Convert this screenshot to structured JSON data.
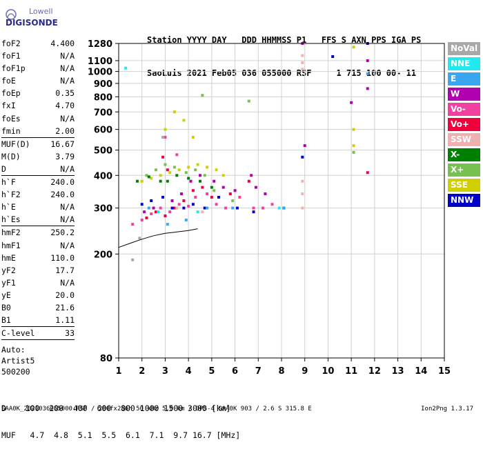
{
  "logo": {
    "line1": "Lowell",
    "line2": "DIGISONDE"
  },
  "header": {
    "line1": "Station YYYY DAY   DDD HHMMSS P1   FFS S AXN PPS IGA PS",
    "line2": "SaoLuis 2021 Feb05 036 055000 RSF     1 715 100 00- 11"
  },
  "params": [
    {
      "group": [
        {
          "name": "foF2",
          "value": "4.400"
        },
        {
          "name": "foF1",
          "value": "N/A"
        },
        {
          "name": "foF1p",
          "value": "N/A"
        },
        {
          "name": "foE",
          "value": "N/A"
        },
        {
          "name": "foEp",
          "value": "0.35"
        },
        {
          "name": "fxI",
          "value": "4.70"
        },
        {
          "name": "foEs",
          "value": "N/A"
        },
        {
          "name": "fmin",
          "value": "2.00"
        }
      ]
    },
    {
      "group": [
        {
          "name": "MUF(D)",
          "value": "16.67"
        },
        {
          "name": "M(D)",
          "value": "3.79"
        },
        {
          "name": "D",
          "value": "N/A"
        }
      ]
    },
    {
      "group": [
        {
          "name": "h`F",
          "value": "240.0"
        },
        {
          "name": "h`F2",
          "value": "240.0"
        },
        {
          "name": "h`E",
          "value": "N/A"
        },
        {
          "name": "h`Es",
          "value": "N/A"
        }
      ]
    },
    {
      "group": [
        {
          "name": "hmF2",
          "value": "250.2"
        },
        {
          "name": "hmF1",
          "value": "N/A"
        },
        {
          "name": "hmE",
          "value": "110.0"
        },
        {
          "name": "yF2",
          "value": "17.7"
        },
        {
          "name": "yF1",
          "value": "N/A"
        },
        {
          "name": "yE",
          "value": "20.0"
        },
        {
          "name": "B0",
          "value": "21.6"
        },
        {
          "name": "B1",
          "value": "1.11"
        }
      ]
    },
    {
      "group": [
        {
          "name": "C-level",
          "value": "33"
        }
      ]
    }
  ],
  "info": [
    "Auto:",
    "Artist5",
    "500200"
  ],
  "legend": [
    {
      "label": "NoVal",
      "color": "#a8a8a8"
    },
    {
      "label": "NNE",
      "color": "#22e8f0"
    },
    {
      "label": "E",
      "color": "#3aa6f0"
    },
    {
      "label": "W",
      "color": "#b000b0"
    },
    {
      "label": "Vo-",
      "color": "#f040a0"
    },
    {
      "label": "Vo+",
      "color": "#f0003c"
    },
    {
      "label": "SSW",
      "color": "#f0b0b0"
    },
    {
      "label": "X-",
      "color": "#008000"
    },
    {
      "label": "X+",
      "color": "#78c050"
    },
    {
      "label": "SSE",
      "color": "#d0d000"
    },
    {
      "label": "NNW",
      "color": "#0000c8"
    }
  ],
  "muf_table": {
    "line1": "D    100  200  400  600  800 1000 1500 3000 [km]",
    "line2": "MUF   4.7  4.8  5.1  5.5  6.1  7.1  9.7 16.7 [MHz]"
  },
  "footer": "SAA0K_2021036055000.RSF / 280fx256h 50 kHz 5.0 km / DPS-4 SAA0K 903 / 2.6 S 315.8 E",
  "version": "Ion2Png 1.3.17",
  "chart_data": {
    "type": "scatter",
    "xlabel": "",
    "ylabel": "",
    "xlim": [
      1,
      15
    ],
    "ylim": [
      80,
      1280
    ],
    "xticks": [
      1,
      2,
      3,
      4,
      5,
      6,
      7,
      8,
      9,
      10,
      11,
      12,
      13,
      14,
      15
    ],
    "yticks": [
      80,
      200,
      300,
      400,
      500,
      600,
      700,
      800,
      900,
      1000,
      1100,
      1280
    ],
    "grid": true,
    "trace_curve": {
      "x": [
        1.0,
        1.5,
        2.0,
        2.5,
        3.0,
        3.5,
        4.0,
        4.4
      ],
      "y": [
        212,
        220,
        228,
        235,
        240,
        243,
        246,
        250
      ]
    },
    "series": [
      {
        "name": "Vo-",
        "points": [
          [
            2.0,
            270
          ],
          [
            2.4,
            285
          ],
          [
            2.8,
            300
          ],
          [
            3.2,
            290
          ],
          [
            3.6,
            310
          ],
          [
            4.0,
            305
          ],
          [
            4.3,
            330
          ],
          [
            4.8,
            340
          ],
          [
            5.2,
            310
          ],
          [
            5.6,
            300
          ],
          [
            6.2,
            330
          ],
          [
            6.8,
            300
          ],
          [
            7.2,
            300
          ],
          [
            7.6,
            310
          ],
          [
            1.6,
            260
          ],
          [
            3.5,
            480
          ],
          [
            3.0,
            560
          ]
        ]
      },
      {
        "name": "Vo+",
        "points": [
          [
            2.2,
            275
          ],
          [
            2.6,
            290
          ],
          [
            3.0,
            280
          ],
          [
            3.4,
            300
          ],
          [
            3.8,
            320
          ],
          [
            4.2,
            350
          ],
          [
            4.6,
            360
          ],
          [
            5.0,
            330
          ],
          [
            5.8,
            340
          ],
          [
            6.6,
            380
          ],
          [
            3.1,
            420
          ],
          [
            2.9,
            470
          ],
          [
            11.7,
            410
          ]
        ]
      },
      {
        "name": "W",
        "points": [
          [
            2.1,
            290
          ],
          [
            2.5,
            300
          ],
          [
            3.3,
            320
          ],
          [
            3.7,
            340
          ],
          [
            4.1,
            380
          ],
          [
            4.5,
            400
          ],
          [
            5.1,
            380
          ],
          [
            5.5,
            360
          ],
          [
            6.0,
            350
          ],
          [
            6.7,
            400
          ],
          [
            6.9,
            360
          ],
          [
            7.3,
            340
          ],
          [
            9.0,
            520
          ],
          [
            11.0,
            760
          ],
          [
            11.7,
            1100
          ],
          [
            11.7,
            860
          ],
          [
            8.9,
            1280
          ]
        ]
      },
      {
        "name": "NNW",
        "points": [
          [
            2.0,
            310
          ],
          [
            2.4,
            320
          ],
          [
            2.9,
            330
          ],
          [
            3.3,
            300
          ],
          [
            3.8,
            300
          ],
          [
            4.2,
            310
          ],
          [
            4.7,
            300
          ],
          [
            5.3,
            330
          ],
          [
            6.1,
            300
          ],
          [
            6.8,
            290
          ],
          [
            8.1,
            300
          ],
          [
            8.9,
            470
          ],
          [
            10.2,
            1140
          ],
          [
            11.7,
            1280
          ]
        ]
      },
      {
        "name": "SSE",
        "points": [
          [
            2.0,
            380
          ],
          [
            2.4,
            390
          ],
          [
            2.8,
            400
          ],
          [
            3.2,
            410
          ],
          [
            3.6,
            420
          ],
          [
            4.0,
            430
          ],
          [
            4.4,
            440
          ],
          [
            4.8,
            430
          ],
          [
            5.2,
            420
          ],
          [
            5.5,
            400
          ],
          [
            3.0,
            600
          ],
          [
            3.4,
            700
          ],
          [
            3.8,
            650
          ],
          [
            4.2,
            560
          ],
          [
            11.1,
            1240
          ],
          [
            11.1,
            600
          ],
          [
            11.1,
            520
          ]
        ]
      },
      {
        "name": "X+",
        "points": [
          [
            2.2,
            400
          ],
          [
            2.6,
            420
          ],
          [
            3.0,
            440
          ],
          [
            3.4,
            430
          ],
          [
            3.9,
            410
          ],
          [
            4.3,
            420
          ],
          [
            4.7,
            400
          ],
          [
            5.1,
            350
          ],
          [
            5.9,
            320
          ],
          [
            6.6,
            770
          ],
          [
            4.6,
            810
          ],
          [
            11.1,
            490
          ]
        ]
      },
      {
        "name": "X-",
        "points": [
          [
            1.8,
            380
          ],
          [
            2.3,
            395
          ],
          [
            3.1,
            380
          ],
          [
            3.5,
            400
          ],
          [
            4.0,
            390
          ],
          [
            4.5,
            380
          ],
          [
            5.0,
            360
          ],
          [
            2.8,
            380
          ]
        ]
      },
      {
        "name": "E",
        "points": [
          [
            2.3,
            300
          ],
          [
            3.1,
            260
          ],
          [
            3.9,
            270
          ],
          [
            4.8,
            300
          ],
          [
            5.9,
            300
          ],
          [
            8.1,
            300
          ],
          [
            11.7,
            980
          ]
        ]
      },
      {
        "name": "NNE",
        "points": [
          [
            1.3,
            1030
          ],
          [
            2.7,
            290
          ],
          [
            4.4,
            290
          ],
          [
            7.9,
            300
          ]
        ]
      },
      {
        "name": "SSW",
        "points": [
          [
            8.9,
            300
          ],
          [
            8.9,
            340
          ],
          [
            8.9,
            380
          ],
          [
            8.9,
            1020
          ],
          [
            8.9,
            1080
          ],
          [
            8.9,
            1150
          ],
          [
            3.5,
            300
          ],
          [
            4.6,
            290
          ]
        ]
      },
      {
        "name": "NoVal",
        "points": [
          [
            1.6,
            190
          ],
          [
            1.9,
            230
          ],
          [
            2.9,
            560
          ]
        ]
      }
    ]
  }
}
